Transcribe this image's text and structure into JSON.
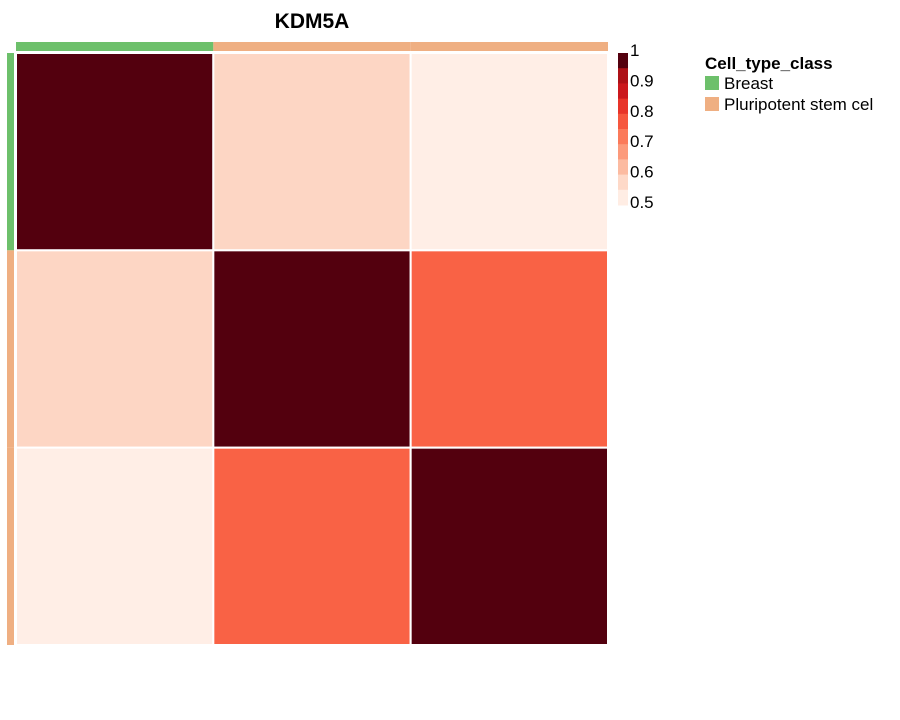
{
  "chart_data": {
    "type": "heatmap",
    "title": "KDM5A",
    "xlabel": "",
    "ylabel": "",
    "rows": 3,
    "cols": 3,
    "values": [
      [
        1.0,
        0.58,
        0.52
      ],
      [
        0.58,
        1.0,
        0.76
      ],
      [
        0.52,
        0.76,
        1.0
      ]
    ],
    "annotation": {
      "name": "Cell_type_class",
      "classes": [
        "Breast",
        "Pluripotent stem cell",
        "Pluripotent stem cell"
      ]
    },
    "colorbar": {
      "range": [
        0.5,
        1.0
      ],
      "ticks": [
        "1",
        "0.9",
        "0.8",
        "0.7",
        "0.6",
        "0.5"
      ],
      "tick_values": [
        1.0,
        0.9,
        0.8,
        0.7,
        0.6,
        0.5
      ],
      "palette": [
        "#FFF5F0",
        "#FEE0D2",
        "#FCBBA1",
        "#FC9272",
        "#FB6A4A",
        "#EF3B2C",
        "#CB181D",
        "#A50F15",
        "#67000D"
      ],
      "top_color": "#53000E"
    },
    "legend": {
      "title": "Cell_type_class",
      "entries": [
        {
          "label": "Breast",
          "color": "#6DC06B"
        },
        {
          "label": "Pluripotent stem cel",
          "color": "#EFAF82"
        }
      ],
      "position": "right"
    }
  }
}
